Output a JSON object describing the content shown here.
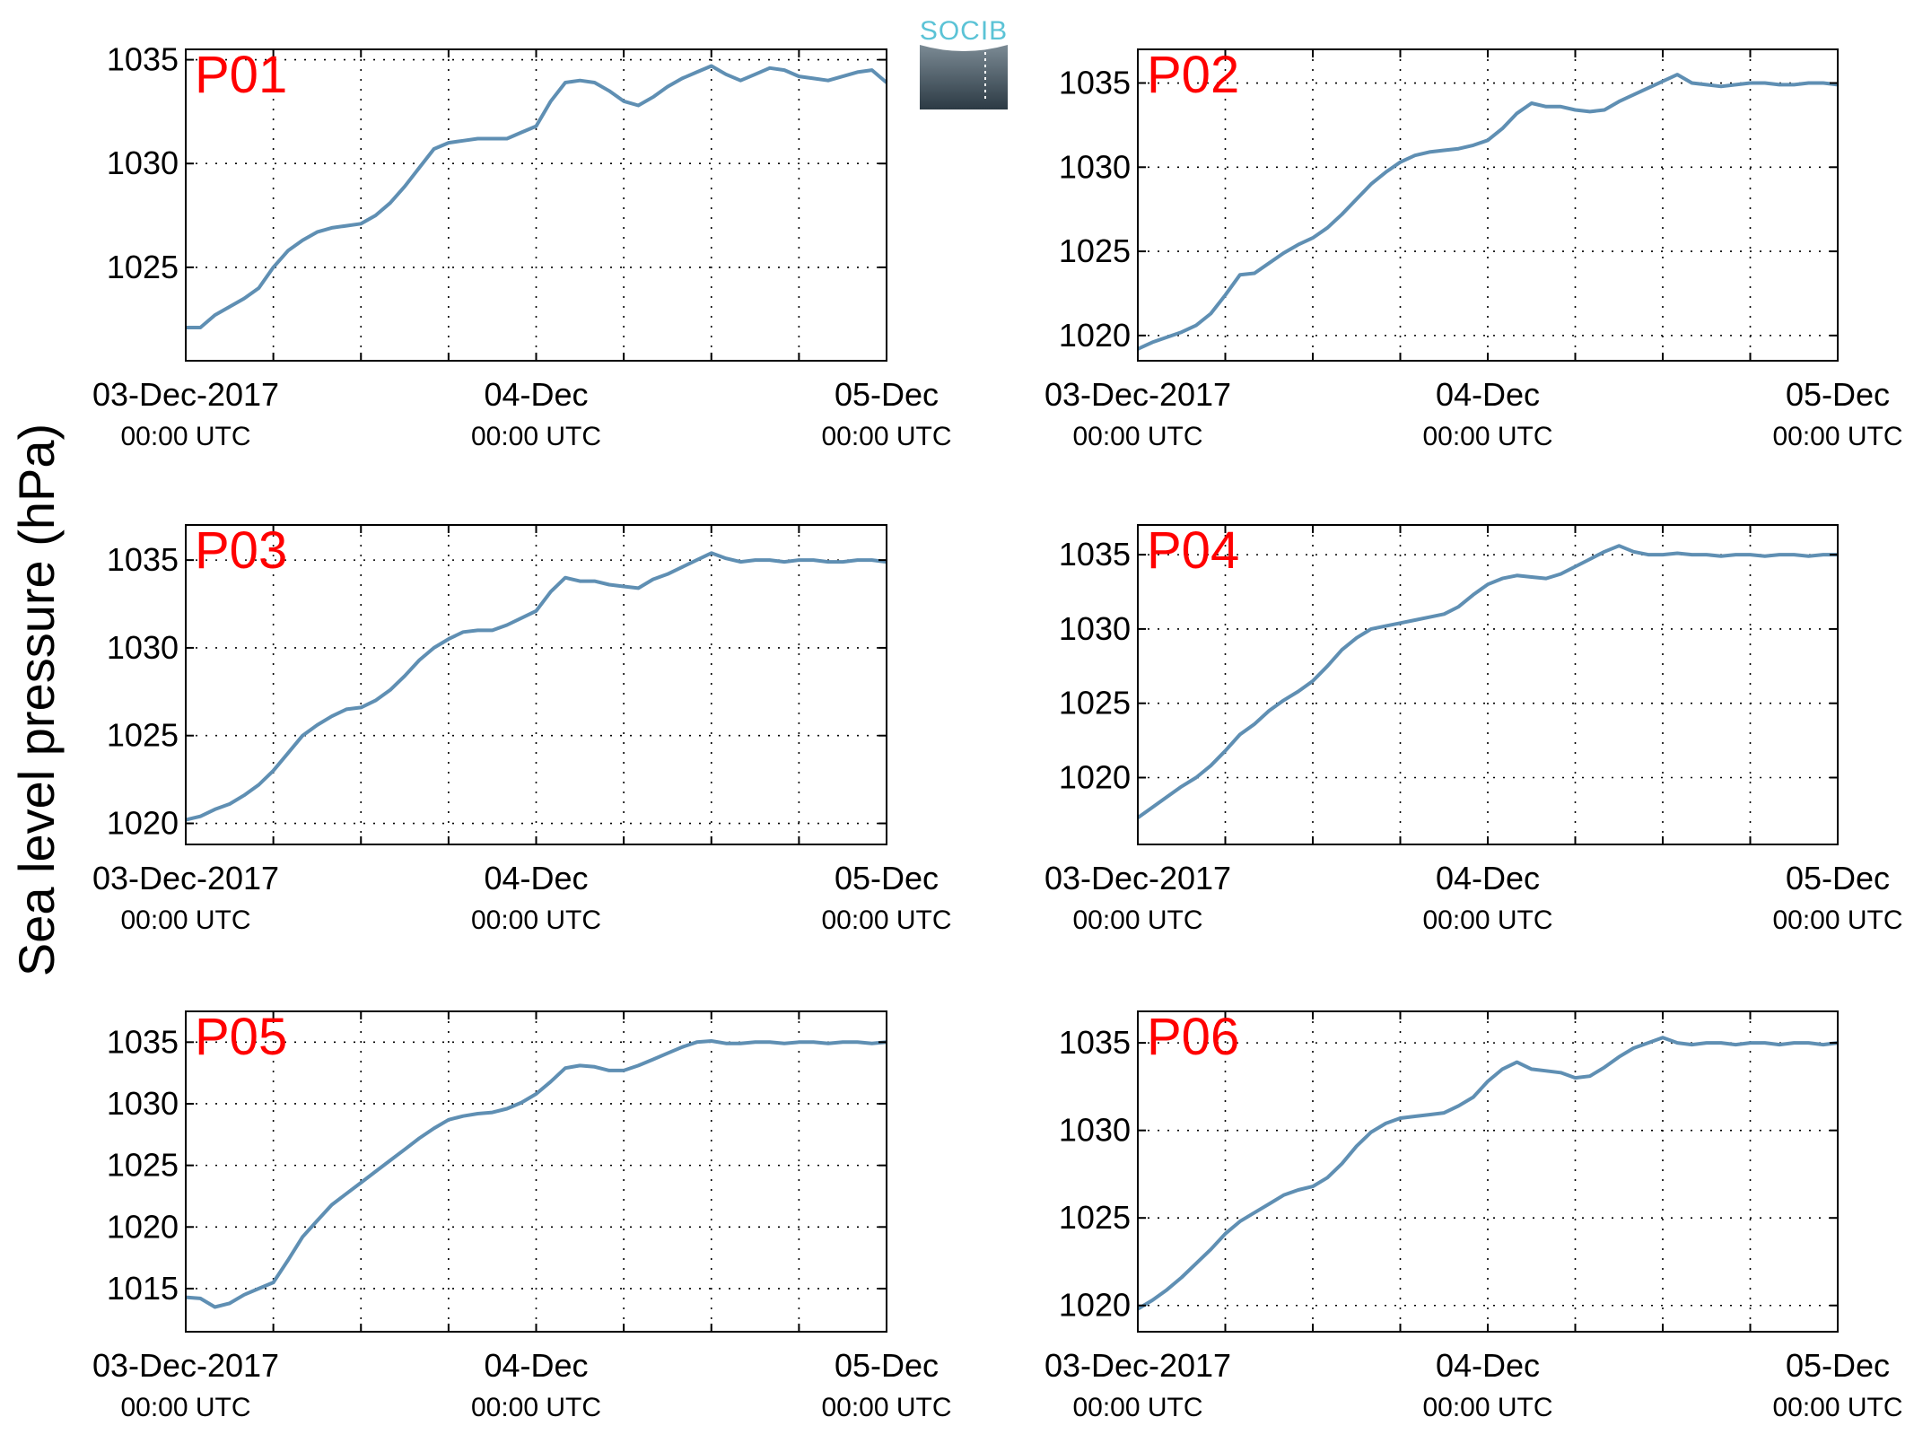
{
  "figure": {
    "ylabel": "Sea level pressure (hPa)",
    "logo_text": "SOCIB",
    "colors": {
      "line": "#5f8fb3",
      "panel_label": "#ff0000",
      "logo_text": "#5bc3d6",
      "logo_top": "#7b8a94",
      "logo_bottom": "#2c3a44"
    }
  },
  "chart_data": [
    {
      "type": "line",
      "name": "P01",
      "x_ticks": [
        0,
        24,
        48
      ],
      "x_minor_ticks": [
        6,
        12,
        18,
        30,
        36,
        42
      ],
      "x_tick_labels": [
        [
          "03-Dec-2017",
          "00:00 UTC"
        ],
        [
          "04-Dec",
          "00:00 UTC"
        ],
        [
          "05-Dec",
          "00:00 UTC"
        ]
      ],
      "xlim": [
        0,
        48
      ],
      "ylim": [
        1020.5,
        1035.5
      ],
      "y_ticks": [
        1025,
        1030,
        1035
      ],
      "grid": true,
      "x": [
        0,
        1,
        2,
        3,
        4,
        5,
        6,
        7,
        8,
        9,
        10,
        11,
        12,
        13,
        14,
        15,
        16,
        17,
        18,
        19,
        20,
        21,
        22,
        23,
        24,
        25,
        26,
        27,
        28,
        29,
        30,
        31,
        32,
        33,
        34,
        35,
        36,
        37,
        38,
        39,
        40,
        41,
        42,
        43,
        44,
        45,
        46,
        47,
        48
      ],
      "y": [
        1022.1,
        1022.1,
        1022.7,
        1023.1,
        1023.5,
        1024.0,
        1025.0,
        1025.8,
        1026.3,
        1026.7,
        1026.9,
        1027.0,
        1027.1,
        1027.5,
        1028.1,
        1028.9,
        1029.8,
        1030.7,
        1031.0,
        1031.1,
        1031.2,
        1031.2,
        1031.2,
        1031.5,
        1031.8,
        1033.0,
        1033.9,
        1034.0,
        1033.9,
        1033.5,
        1033.0,
        1032.8,
        1033.2,
        1033.7,
        1034.1,
        1034.4,
        1034.7,
        1034.3,
        1034.0,
        1034.3,
        1034.6,
        1034.5,
        1034.2,
        1034.1,
        1034.0,
        1034.2,
        1034.4,
        1034.5,
        1033.9
      ]
    },
    {
      "type": "line",
      "name": "P02",
      "x_ticks": [
        0,
        24,
        48
      ],
      "x_minor_ticks": [
        6,
        12,
        18,
        30,
        36,
        42
      ],
      "x_tick_labels": [
        [
          "03-Dec-2017",
          "00:00 UTC"
        ],
        [
          "04-Dec",
          "00:00 UTC"
        ],
        [
          "05-Dec",
          "00:00 UTC"
        ]
      ],
      "xlim": [
        0,
        48
      ],
      "ylim": [
        1018.5,
        1037.0
      ],
      "y_ticks": [
        1020,
        1025,
        1030,
        1035
      ],
      "grid": true,
      "x": [
        0,
        1,
        2,
        3,
        4,
        5,
        6,
        7,
        8,
        9,
        10,
        11,
        12,
        13,
        14,
        15,
        16,
        17,
        18,
        19,
        20,
        21,
        22,
        23,
        24,
        25,
        26,
        27,
        28,
        29,
        30,
        31,
        32,
        33,
        34,
        35,
        36,
        37,
        38,
        39,
        40,
        41,
        42,
        43,
        44,
        45,
        46,
        47,
        48
      ],
      "y": [
        1019.2,
        1019.6,
        1019.9,
        1020.2,
        1020.6,
        1021.3,
        1022.4,
        1023.6,
        1023.7,
        1024.3,
        1024.9,
        1025.4,
        1025.8,
        1026.4,
        1027.2,
        1028.1,
        1029.0,
        1029.7,
        1030.3,
        1030.7,
        1030.9,
        1031.0,
        1031.1,
        1031.3,
        1031.6,
        1032.3,
        1033.2,
        1033.8,
        1033.6,
        1033.6,
        1033.4,
        1033.3,
        1033.4,
        1033.9,
        1034.3,
        1034.7,
        1035.1,
        1035.5,
        1035.0,
        1034.9,
        1034.8,
        1034.9,
        1035.0,
        1035.0,
        1034.9,
        1034.9,
        1035.0,
        1035.0,
        1034.9
      ]
    },
    {
      "type": "line",
      "name": "P03",
      "x_ticks": [
        0,
        24,
        48
      ],
      "x_minor_ticks": [
        6,
        12,
        18,
        30,
        36,
        42
      ],
      "x_tick_labels": [
        [
          "03-Dec-2017",
          "00:00 UTC"
        ],
        [
          "04-Dec",
          "00:00 UTC"
        ],
        [
          "05-Dec",
          "00:00 UTC"
        ]
      ],
      "xlim": [
        0,
        48
      ],
      "ylim": [
        1018.8,
        1037.0
      ],
      "y_ticks": [
        1020,
        1025,
        1030,
        1035
      ],
      "grid": true,
      "x": [
        0,
        1,
        2,
        3,
        4,
        5,
        6,
        7,
        8,
        9,
        10,
        11,
        12,
        13,
        14,
        15,
        16,
        17,
        18,
        19,
        20,
        21,
        22,
        23,
        24,
        25,
        26,
        27,
        28,
        29,
        30,
        31,
        32,
        33,
        34,
        35,
        36,
        37,
        38,
        39,
        40,
        41,
        42,
        43,
        44,
        45,
        46,
        47,
        48
      ],
      "y": [
        1020.2,
        1020.4,
        1020.8,
        1021.1,
        1021.6,
        1022.2,
        1023.0,
        1024.0,
        1025.0,
        1025.6,
        1026.1,
        1026.5,
        1026.6,
        1027.0,
        1027.6,
        1028.4,
        1029.3,
        1030.0,
        1030.5,
        1030.9,
        1031.0,
        1031.0,
        1031.3,
        1031.7,
        1032.1,
        1033.2,
        1034.0,
        1033.8,
        1033.8,
        1033.6,
        1033.5,
        1033.4,
        1033.9,
        1034.2,
        1034.6,
        1035.0,
        1035.4,
        1035.1,
        1034.9,
        1035.0,
        1035.0,
        1034.9,
        1035.0,
        1035.0,
        1034.9,
        1034.9,
        1035.0,
        1035.0,
        1034.9
      ]
    },
    {
      "type": "line",
      "name": "P04",
      "x_ticks": [
        0,
        24,
        48
      ],
      "x_minor_ticks": [
        6,
        12,
        18,
        30,
        36,
        42
      ],
      "x_tick_labels": [
        [
          "03-Dec-2017",
          "00:00 UTC"
        ],
        [
          "04-Dec",
          "00:00 UTC"
        ],
        [
          "05-Dec",
          "00:00 UTC"
        ]
      ],
      "xlim": [
        0,
        48
      ],
      "ylim": [
        1015.5,
        1037.0
      ],
      "y_ticks": [
        1020,
        1025,
        1030,
        1035
      ],
      "grid": true,
      "x": [
        0,
        1,
        2,
        3,
        4,
        5,
        6,
        7,
        8,
        9,
        10,
        11,
        12,
        13,
        14,
        15,
        16,
        17,
        18,
        19,
        20,
        21,
        22,
        23,
        24,
        25,
        26,
        27,
        28,
        29,
        30,
        31,
        32,
        33,
        34,
        35,
        36,
        37,
        38,
        39,
        40,
        41,
        42,
        43,
        44,
        45,
        46,
        47,
        48
      ],
      "y": [
        1017.3,
        1018.0,
        1018.7,
        1019.4,
        1020.0,
        1020.8,
        1021.8,
        1022.9,
        1023.6,
        1024.5,
        1025.2,
        1025.8,
        1026.5,
        1027.5,
        1028.6,
        1029.4,
        1030.0,
        1030.2,
        1030.4,
        1030.6,
        1030.8,
        1031.0,
        1031.5,
        1032.3,
        1033.0,
        1033.4,
        1033.6,
        1033.5,
        1033.4,
        1033.7,
        1034.2,
        1034.7,
        1035.2,
        1035.6,
        1035.2,
        1035.0,
        1035.0,
        1035.1,
        1035.0,
        1035.0,
        1034.9,
        1035.0,
        1035.0,
        1034.9,
        1035.0,
        1035.0,
        1034.9,
        1035.0,
        1035.0
      ]
    },
    {
      "type": "line",
      "name": "P05",
      "x_ticks": [
        0,
        24,
        48
      ],
      "x_minor_ticks": [
        6,
        12,
        18,
        30,
        36,
        42
      ],
      "x_tick_labels": [
        [
          "03-Dec-2017",
          "00:00 UTC"
        ],
        [
          "04-Dec",
          "00:00 UTC"
        ],
        [
          "05-Dec",
          "00:00 UTC"
        ]
      ],
      "xlim": [
        0,
        48
      ],
      "ylim": [
        1011.5,
        1037.5
      ],
      "y_ticks": [
        1015,
        1020,
        1025,
        1030,
        1035
      ],
      "grid": true,
      "x": [
        0,
        1,
        2,
        3,
        4,
        5,
        6,
        7,
        8,
        9,
        10,
        11,
        12,
        13,
        14,
        15,
        16,
        17,
        18,
        19,
        20,
        21,
        22,
        23,
        24,
        25,
        26,
        27,
        28,
        29,
        30,
        31,
        32,
        33,
        34,
        35,
        36,
        37,
        38,
        39,
        40,
        41,
        42,
        43,
        44,
        45,
        46,
        47,
        48
      ],
      "y": [
        1014.3,
        1014.2,
        1013.5,
        1013.8,
        1014.5,
        1015.0,
        1015.5,
        1017.3,
        1019.2,
        1020.5,
        1021.8,
        1022.7,
        1023.6,
        1024.5,
        1025.4,
        1026.3,
        1027.2,
        1028.0,
        1028.7,
        1029.0,
        1029.2,
        1029.3,
        1029.6,
        1030.1,
        1030.8,
        1031.8,
        1032.9,
        1033.1,
        1033.0,
        1032.7,
        1032.7,
        1033.1,
        1033.6,
        1034.1,
        1034.6,
        1035.0,
        1035.1,
        1034.9,
        1034.9,
        1035.0,
        1035.0,
        1034.9,
        1035.0,
        1035.0,
        1034.9,
        1035.0,
        1035.0,
        1034.9,
        1035.0
      ]
    },
    {
      "type": "line",
      "name": "P06",
      "x_ticks": [
        0,
        24,
        48
      ],
      "x_minor_ticks": [
        6,
        12,
        18,
        30,
        36,
        42
      ],
      "x_tick_labels": [
        [
          "03-Dec-2017",
          "00:00 UTC"
        ],
        [
          "04-Dec",
          "00:00 UTC"
        ],
        [
          "05-Dec",
          "00:00 UTC"
        ]
      ],
      "xlim": [
        0,
        48
      ],
      "ylim": [
        1018.5,
        1036.8
      ],
      "y_ticks": [
        1020,
        1025,
        1030,
        1035
      ],
      "grid": true,
      "x": [
        0,
        1,
        2,
        3,
        4,
        5,
        6,
        7,
        8,
        9,
        10,
        11,
        12,
        13,
        14,
        15,
        16,
        17,
        18,
        19,
        20,
        21,
        22,
        23,
        24,
        25,
        26,
        27,
        28,
        29,
        30,
        31,
        32,
        33,
        34,
        35,
        36,
        37,
        38,
        39,
        40,
        41,
        42,
        43,
        44,
        45,
        46,
        47,
        48
      ],
      "y": [
        1019.8,
        1020.3,
        1020.9,
        1021.6,
        1022.4,
        1023.2,
        1024.1,
        1024.8,
        1025.3,
        1025.8,
        1026.3,
        1026.6,
        1026.8,
        1027.3,
        1028.1,
        1029.1,
        1029.9,
        1030.4,
        1030.7,
        1030.8,
        1030.9,
        1031.0,
        1031.4,
        1031.9,
        1032.8,
        1033.5,
        1033.9,
        1033.5,
        1033.4,
        1033.3,
        1033.0,
        1033.1,
        1033.6,
        1034.2,
        1034.7,
        1035.0,
        1035.3,
        1035.0,
        1034.9,
        1035.0,
        1035.0,
        1034.9,
        1035.0,
        1035.0,
        1034.9,
        1035.0,
        1035.0,
        1034.9,
        1035.0
      ]
    }
  ]
}
